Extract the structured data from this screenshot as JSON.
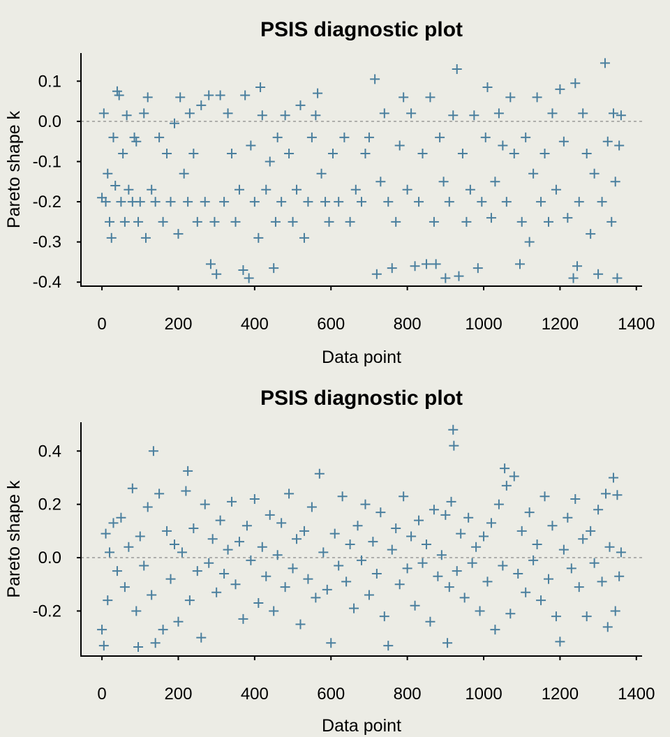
{
  "chart_data": [
    {
      "type": "scatter",
      "title": "PSIS diagnostic plot",
      "xlabel": "Data point",
      "ylabel": "Pareto shape k",
      "xlim": [
        -55,
        1415
      ],
      "ylim": [
        -0.41,
        0.17
      ],
      "xticks": [
        0,
        200,
        400,
        600,
        800,
        1000,
        1200,
        1400
      ],
      "xtick_labels": [
        "0",
        "200",
        "400",
        "600",
        "800",
        "1000",
        "1200",
        "1400"
      ],
      "yticks": [
        0.1,
        0.0,
        -0.1,
        -0.2,
        -0.3,
        -0.4
      ],
      "ytick_labels": [
        "0.1",
        "0.0",
        "-0.1",
        "-0.2",
        "-0.3",
        "-0.4"
      ],
      "reference_line": 0,
      "marker": "+",
      "color": "#4a7f9e",
      "grid": false,
      "points": [
        [
          0,
          -0.19
        ],
        [
          5,
          0.02
        ],
        [
          10,
          -0.2
        ],
        [
          15,
          -0.13
        ],
        [
          20,
          -0.25
        ],
        [
          25,
          -0.29
        ],
        [
          30,
          -0.04
        ],
        [
          35,
          -0.16
        ],
        [
          40,
          0.075
        ],
        [
          45,
          0.065
        ],
        [
          50,
          -0.2
        ],
        [
          55,
          -0.08
        ],
        [
          60,
          -0.25
        ],
        [
          65,
          0.015
        ],
        [
          70,
          -0.17
        ],
        [
          80,
          -0.2
        ],
        [
          85,
          -0.04
        ],
        [
          90,
          -0.05
        ],
        [
          95,
          -0.25
        ],
        [
          100,
          -0.2
        ],
        [
          110,
          0.02
        ],
        [
          115,
          -0.29
        ],
        [
          120,
          0.06
        ],
        [
          130,
          -0.17
        ],
        [
          140,
          -0.2
        ],
        [
          150,
          -0.04
        ],
        [
          160,
          -0.25
        ],
        [
          170,
          -0.08
        ],
        [
          180,
          -0.2
        ],
        [
          190,
          -0.005
        ],
        [
          200,
          -0.28
        ],
        [
          205,
          0.06
        ],
        [
          215,
          -0.13
        ],
        [
          225,
          -0.2
        ],
        [
          230,
          0.02
        ],
        [
          240,
          -0.08
        ],
        [
          250,
          -0.25
        ],
        [
          260,
          0.04
        ],
        [
          270,
          -0.2
        ],
        [
          280,
          0.065
        ],
        [
          285,
          -0.355
        ],
        [
          295,
          -0.25
        ],
        [
          300,
          -0.38
        ],
        [
          310,
          0.065
        ],
        [
          320,
          -0.2
        ],
        [
          330,
          0.02
        ],
        [
          340,
          -0.08
        ],
        [
          350,
          -0.25
        ],
        [
          360,
          -0.17
        ],
        [
          370,
          -0.37
        ],
        [
          375,
          0.065
        ],
        [
          385,
          -0.39
        ],
        [
          390,
          -0.06
        ],
        [
          400,
          -0.2
        ],
        [
          410,
          -0.29
        ],
        [
          415,
          0.085
        ],
        [
          420,
          0.015
        ],
        [
          430,
          -0.17
        ],
        [
          440,
          -0.1
        ],
        [
          450,
          -0.365
        ],
        [
          455,
          -0.25
        ],
        [
          460,
          -0.04
        ],
        [
          470,
          -0.2
        ],
        [
          480,
          0.015
        ],
        [
          490,
          -0.08
        ],
        [
          500,
          -0.25
        ],
        [
          510,
          -0.17
        ],
        [
          520,
          0.04
        ],
        [
          530,
          -0.29
        ],
        [
          540,
          -0.2
        ],
        [
          550,
          -0.04
        ],
        [
          560,
          0.015
        ],
        [
          565,
          0.07
        ],
        [
          575,
          -0.13
        ],
        [
          585,
          -0.2
        ],
        [
          595,
          -0.25
        ],
        [
          605,
          -0.08
        ],
        [
          620,
          -0.2
        ],
        [
          635,
          -0.04
        ],
        [
          650,
          -0.25
        ],
        [
          665,
          -0.17
        ],
        [
          680,
          -0.2
        ],
        [
          690,
          -0.08
        ],
        [
          700,
          -0.04
        ],
        [
          715,
          0.105
        ],
        [
          720,
          -0.38
        ],
        [
          730,
          -0.15
        ],
        [
          740,
          0.02
        ],
        [
          750,
          -0.2
        ],
        [
          760,
          -0.365
        ],
        [
          770,
          -0.25
        ],
        [
          780,
          -0.06
        ],
        [
          790,
          0.06
        ],
        [
          800,
          -0.17
        ],
        [
          810,
          0.02
        ],
        [
          820,
          -0.36
        ],
        [
          830,
          -0.2
        ],
        [
          840,
          -0.08
        ],
        [
          850,
          -0.355
        ],
        [
          860,
          0.06
        ],
        [
          870,
          -0.25
        ],
        [
          875,
          -0.355
        ],
        [
          885,
          -0.04
        ],
        [
          895,
          -0.15
        ],
        [
          900,
          -0.39
        ],
        [
          910,
          -0.2
        ],
        [
          920,
          0.015
        ],
        [
          930,
          0.13
        ],
        [
          935,
          -0.385
        ],
        [
          945,
          -0.08
        ],
        [
          955,
          -0.25
        ],
        [
          965,
          -0.17
        ],
        [
          975,
          0.015
        ],
        [
          985,
          -0.365
        ],
        [
          995,
          -0.2
        ],
        [
          1005,
          -0.04
        ],
        [
          1010,
          0.085
        ],
        [
          1020,
          -0.24
        ],
        [
          1030,
          -0.15
        ],
        [
          1040,
          0.02
        ],
        [
          1050,
          -0.06
        ],
        [
          1060,
          -0.2
        ],
        [
          1070,
          0.06
        ],
        [
          1080,
          -0.08
        ],
        [
          1095,
          -0.355
        ],
        [
          1100,
          -0.25
        ],
        [
          1110,
          -0.04
        ],
        [
          1120,
          -0.3
        ],
        [
          1130,
          -0.13
        ],
        [
          1140,
          0.06
        ],
        [
          1150,
          -0.2
        ],
        [
          1160,
          -0.08
        ],
        [
          1170,
          -0.25
        ],
        [
          1180,
          0.02
        ],
        [
          1190,
          -0.17
        ],
        [
          1200,
          0.08
        ],
        [
          1210,
          -0.05
        ],
        [
          1220,
          -0.24
        ],
        [
          1235,
          -0.39
        ],
        [
          1240,
          0.095
        ],
        [
          1245,
          -0.36
        ],
        [
          1250,
          -0.2
        ],
        [
          1260,
          0.02
        ],
        [
          1270,
          -0.08
        ],
        [
          1280,
          -0.28
        ],
        [
          1290,
          -0.13
        ],
        [
          1300,
          -0.38
        ],
        [
          1310,
          -0.2
        ],
        [
          1318,
          0.145
        ],
        [
          1325,
          -0.05
        ],
        [
          1335,
          -0.25
        ],
        [
          1340,
          0.02
        ],
        [
          1345,
          -0.15
        ],
        [
          1350,
          -0.39
        ],
        [
          1355,
          -0.06
        ],
        [
          1360,
          0.015
        ]
      ]
    },
    {
      "type": "scatter",
      "title": "PSIS diagnostic plot",
      "xlabel": "Data point",
      "ylabel": "Pareto shape k",
      "xlim": [
        -55,
        1415
      ],
      "ylim": [
        -0.369,
        0.508
      ],
      "xticks": [
        0,
        200,
        400,
        600,
        800,
        1000,
        1200,
        1400
      ],
      "xtick_labels": [
        "0",
        "200",
        "400",
        "600",
        "800",
        "1000",
        "1200",
        "1400"
      ],
      "yticks": [
        0.4,
        0.2,
        0.0,
        -0.2
      ],
      "ytick_labels": [
        "0.4",
        "0.2",
        "0.0",
        "-0.2"
      ],
      "reference_line": 0,
      "marker": "+",
      "color": "#4a7f9e",
      "grid": false,
      "points": [
        [
          0,
          -0.27
        ],
        [
          5,
          -0.33
        ],
        [
          10,
          0.09
        ],
        [
          15,
          -0.16
        ],
        [
          20,
          0.02
        ],
        [
          30,
          0.13
        ],
        [
          40,
          -0.05
        ],
        [
          50,
          0.15
        ],
        [
          60,
          -0.11
        ],
        [
          70,
          0.04
        ],
        [
          80,
          0.26
        ],
        [
          90,
          -0.2
        ],
        [
          95,
          -0.335
        ],
        [
          100,
          0.08
        ],
        [
          110,
          -0.03
        ],
        [
          120,
          0.19
        ],
        [
          130,
          -0.14
        ],
        [
          135,
          0.4
        ],
        [
          140,
          -0.32
        ],
        [
          150,
          0.24
        ],
        [
          160,
          -0.27
        ],
        [
          170,
          0.1
        ],
        [
          180,
          -0.08
        ],
        [
          190,
          0.05
        ],
        [
          200,
          -0.24
        ],
        [
          210,
          0.02
        ],
        [
          220,
          0.25
        ],
        [
          225,
          0.325
        ],
        [
          230,
          -0.16
        ],
        [
          240,
          0.11
        ],
        [
          250,
          -0.05
        ],
        [
          260,
          -0.3
        ],
        [
          270,
          0.2
        ],
        [
          280,
          -0.02
        ],
        [
          290,
          0.07
        ],
        [
          300,
          -0.13
        ],
        [
          310,
          0.14
        ],
        [
          320,
          -0.06
        ],
        [
          330,
          0.03
        ],
        [
          340,
          0.21
        ],
        [
          350,
          -0.1
        ],
        [
          360,
          0.06
        ],
        [
          370,
          -0.23
        ],
        [
          380,
          0.12
        ],
        [
          390,
          -0.01
        ],
        [
          400,
          0.22
        ],
        [
          410,
          -0.17
        ],
        [
          420,
          0.04
        ],
        [
          430,
          -0.07
        ],
        [
          440,
          0.16
        ],
        [
          450,
          -0.2
        ],
        [
          460,
          0.01
        ],
        [
          470,
          0.13
        ],
        [
          480,
          -0.11
        ],
        [
          490,
          0.24
        ],
        [
          500,
          -0.04
        ],
        [
          510,
          0.07
        ],
        [
          520,
          -0.25
        ],
        [
          530,
          0.1
        ],
        [
          540,
          -0.08
        ],
        [
          550,
          0.19
        ],
        [
          560,
          -0.15
        ],
        [
          570,
          0.315
        ],
        [
          580,
          0.02
        ],
        [
          590,
          -0.12
        ],
        [
          600,
          -0.32
        ],
        [
          610,
          0.09
        ],
        [
          620,
          -0.03
        ],
        [
          630,
          0.23
        ],
        [
          640,
          -0.09
        ],
        [
          650,
          0.05
        ],
        [
          660,
          -0.19
        ],
        [
          670,
          0.12
        ],
        [
          680,
          -0.01
        ],
        [
          690,
          0.2
        ],
        [
          700,
          -0.14
        ],
        [
          710,
          0.06
        ],
        [
          720,
          -0.06
        ],
        [
          730,
          0.17
        ],
        [
          740,
          -0.22
        ],
        [
          750,
          -0.33
        ],
        [
          760,
          0.03
        ],
        [
          770,
          0.11
        ],
        [
          780,
          -0.1
        ],
        [
          790,
          0.23
        ],
        [
          800,
          -0.04
        ],
        [
          810,
          0.08
        ],
        [
          820,
          -0.18
        ],
        [
          830,
          0.14
        ],
        [
          840,
          -0.02
        ],
        [
          850,
          0.05
        ],
        [
          860,
          -0.24
        ],
        [
          870,
          0.18
        ],
        [
          880,
          -0.07
        ],
        [
          890,
          0.01
        ],
        [
          900,
          0.16
        ],
        [
          905,
          -0.32
        ],
        [
          910,
          -0.11
        ],
        [
          915,
          0.21
        ],
        [
          920,
          0.48
        ],
        [
          922,
          0.42
        ],
        [
          930,
          -0.05
        ],
        [
          940,
          0.09
        ],
        [
          950,
          -0.15
        ],
        [
          960,
          0.15
        ],
        [
          970,
          -0.02
        ],
        [
          980,
          0.04
        ],
        [
          990,
          -0.2
        ],
        [
          1000,
          0.08
        ],
        [
          1010,
          -0.09
        ],
        [
          1020,
          0.13
        ],
        [
          1030,
          -0.27
        ],
        [
          1040,
          0.2
        ],
        [
          1050,
          -0.03
        ],
        [
          1055,
          0.335
        ],
        [
          1060,
          0.27
        ],
        [
          1070,
          -0.21
        ],
        [
          1080,
          0.305
        ],
        [
          1090,
          -0.06
        ],
        [
          1100,
          0.1
        ],
        [
          1110,
          -0.13
        ],
        [
          1120,
          0.17
        ],
        [
          1130,
          -0.01
        ],
        [
          1140,
          0.05
        ],
        [
          1150,
          -0.16
        ],
        [
          1160,
          0.23
        ],
        [
          1170,
          -0.08
        ],
        [
          1180,
          0.12
        ],
        [
          1190,
          -0.22
        ],
        [
          1200,
          -0.315
        ],
        [
          1210,
          0.03
        ],
        [
          1220,
          0.15
        ],
        [
          1230,
          -0.04
        ],
        [
          1240,
          0.22
        ],
        [
          1250,
          -0.11
        ],
        [
          1260,
          0.07
        ],
        [
          1270,
          -0.22
        ],
        [
          1280,
          0.1
        ],
        [
          1290,
          -0.02
        ],
        [
          1300,
          0.18
        ],
        [
          1310,
          -0.09
        ],
        [
          1320,
          0.24
        ],
        [
          1325,
          -0.26
        ],
        [
          1330,
          0.04
        ],
        [
          1340,
          0.3
        ],
        [
          1345,
          -0.2
        ],
        [
          1350,
          0.235
        ],
        [
          1355,
          -0.07
        ],
        [
          1360,
          0.02
        ]
      ]
    }
  ]
}
